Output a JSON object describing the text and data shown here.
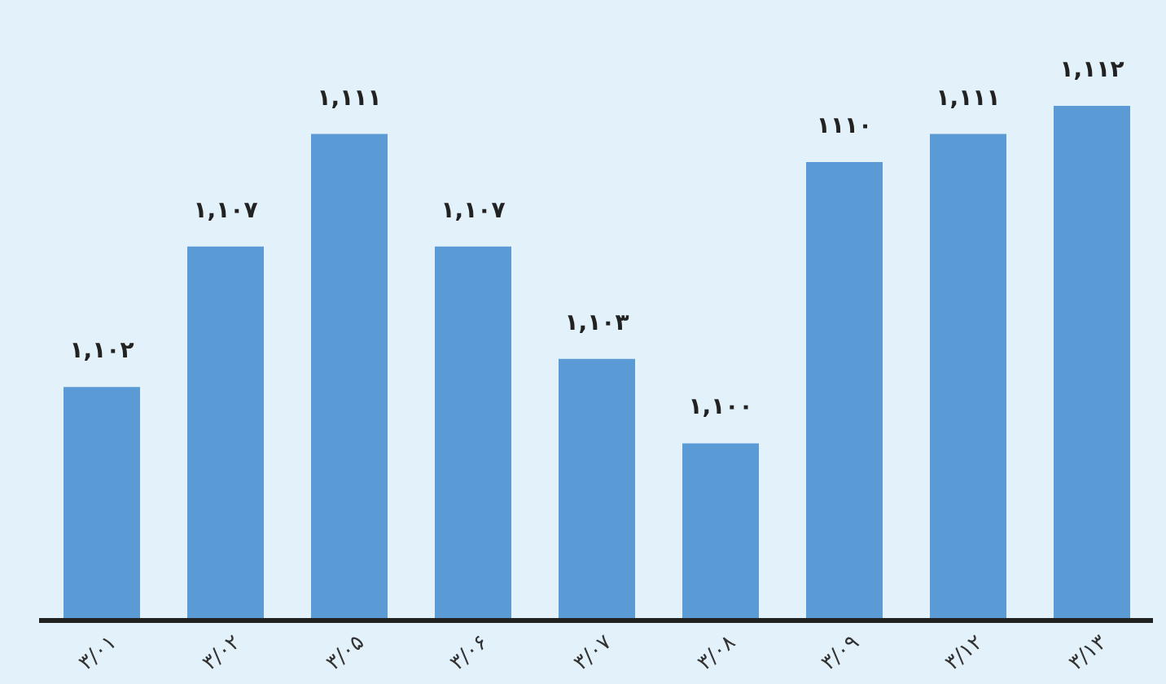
{
  "chart_data": {
    "type": "bar",
    "categories": [
      "۳/۰۱",
      "۳/۰۲",
      "۳/۰۵",
      "۳/۰۶",
      "۳/۰۷",
      "۳/۰۸",
      "۳/۰۹",
      "۳/۱۲",
      "۳/۱۳"
    ],
    "values": [
      1102,
      1107,
      1111,
      1107,
      1103,
      1100,
      1110,
      1111,
      1112
    ],
    "value_labels": [
      "۱,۱۰۲",
      "۱,۱۰۷",
      "۱,۱۱۱",
      "۱,۱۰۷",
      "۱,۱۰۳",
      "۱,۱۰۰",
      "۱۱۱۰",
      "۱,۱۱۱",
      "۱,۱۱۲"
    ],
    "color": "#5b9bd5",
    "ylim": [
      1093.7,
      1112
    ],
    "tick_labels": "x"
  }
}
